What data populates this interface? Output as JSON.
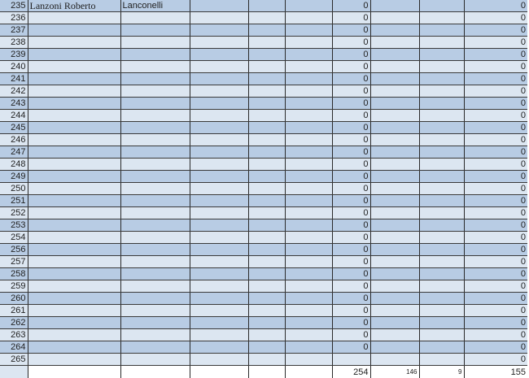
{
  "rows": [
    {
      "n": "235",
      "name": "Lanzoni Roberto",
      "alias": "Lanconelli",
      "a": "0",
      "b": "0"
    },
    {
      "n": "236",
      "a": "0",
      "b": "0"
    },
    {
      "n": "237",
      "a": "0",
      "b": "0"
    },
    {
      "n": "238",
      "a": "0",
      "b": "0"
    },
    {
      "n": "239",
      "a": "0",
      "b": "0"
    },
    {
      "n": "240",
      "a": "0",
      "b": "0"
    },
    {
      "n": "241",
      "a": "0",
      "b": "0"
    },
    {
      "n": "242",
      "a": "0",
      "b": "0"
    },
    {
      "n": "243",
      "a": "0",
      "b": "0"
    },
    {
      "n": "244",
      "a": "0",
      "b": "0"
    },
    {
      "n": "245",
      "a": "0",
      "b": "0"
    },
    {
      "n": "246",
      "a": "0",
      "b": "0"
    },
    {
      "n": "247",
      "a": "0",
      "b": "0"
    },
    {
      "n": "248",
      "a": "0",
      "b": "0"
    },
    {
      "n": "249",
      "a": "0",
      "b": "0"
    },
    {
      "n": "250",
      "a": "0",
      "b": "0"
    },
    {
      "n": "251",
      "a": "0",
      "b": "0"
    },
    {
      "n": "252",
      "a": "0",
      "b": "0"
    },
    {
      "n": "253",
      "a": "0",
      "b": "0"
    },
    {
      "n": "254",
      "a": "0",
      "b": "0"
    },
    {
      "n": "256",
      "a": "0",
      "b": "0"
    },
    {
      "n": "257",
      "a": "0",
      "b": "0"
    },
    {
      "n": "258",
      "a": "0",
      "b": "0"
    },
    {
      "n": "259",
      "a": "0",
      "b": "0"
    },
    {
      "n": "260",
      "a": "0",
      "b": "0"
    },
    {
      "n": "261",
      "a": "0",
      "b": "0"
    },
    {
      "n": "262",
      "a": "0",
      "b": "0"
    },
    {
      "n": "263",
      "a": "0",
      "b": "0"
    },
    {
      "n": "264",
      "a": "0",
      "b": "0"
    },
    {
      "n": "265",
      "a": "",
      "b": "0"
    }
  ],
  "totals": {
    "a": "254",
    "c": "146",
    "d": "9",
    "b": "155"
  }
}
